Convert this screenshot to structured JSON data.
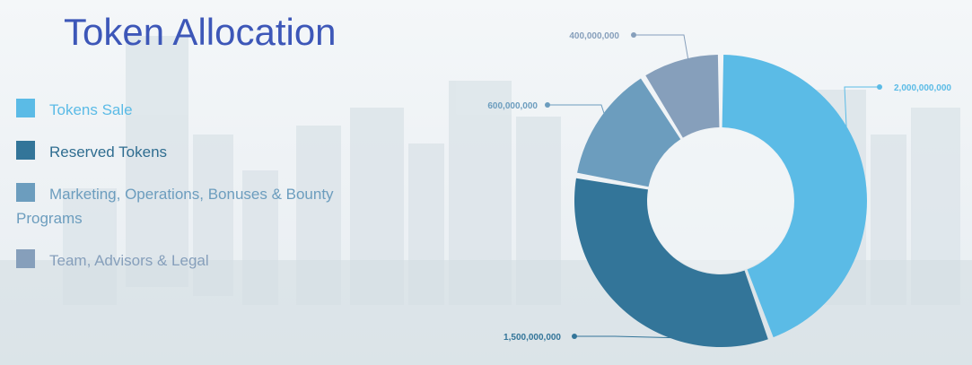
{
  "title": "Token Allocation",
  "colors": {
    "title": "#3d57b8",
    "tokens_sale": "#5bbbe6",
    "reserved": "#337599",
    "marketing": "#6c9dbe",
    "team": "#869fbb"
  },
  "chart_data": {
    "type": "pie",
    "variant": "donut",
    "title": "Token Allocation",
    "legend_position": "left",
    "series": [
      {
        "name": "Tokens Sale",
        "value": 2000000000,
        "label": "2,000,000,000",
        "color": "#5bbbe6"
      },
      {
        "name": "Reserved Tokens",
        "value": 1500000000,
        "label": "1,500,000,000",
        "color": "#337599"
      },
      {
        "name": "Marketing, Operations, Bonuses & Bounty Programs",
        "value": 600000000,
        "label": "600,000,000",
        "color": "#6c9dbe"
      },
      {
        "name": "Team, Advisors & Legal",
        "value": 400000000,
        "label": "400,000,000",
        "color": "#869fbb"
      }
    ]
  }
}
